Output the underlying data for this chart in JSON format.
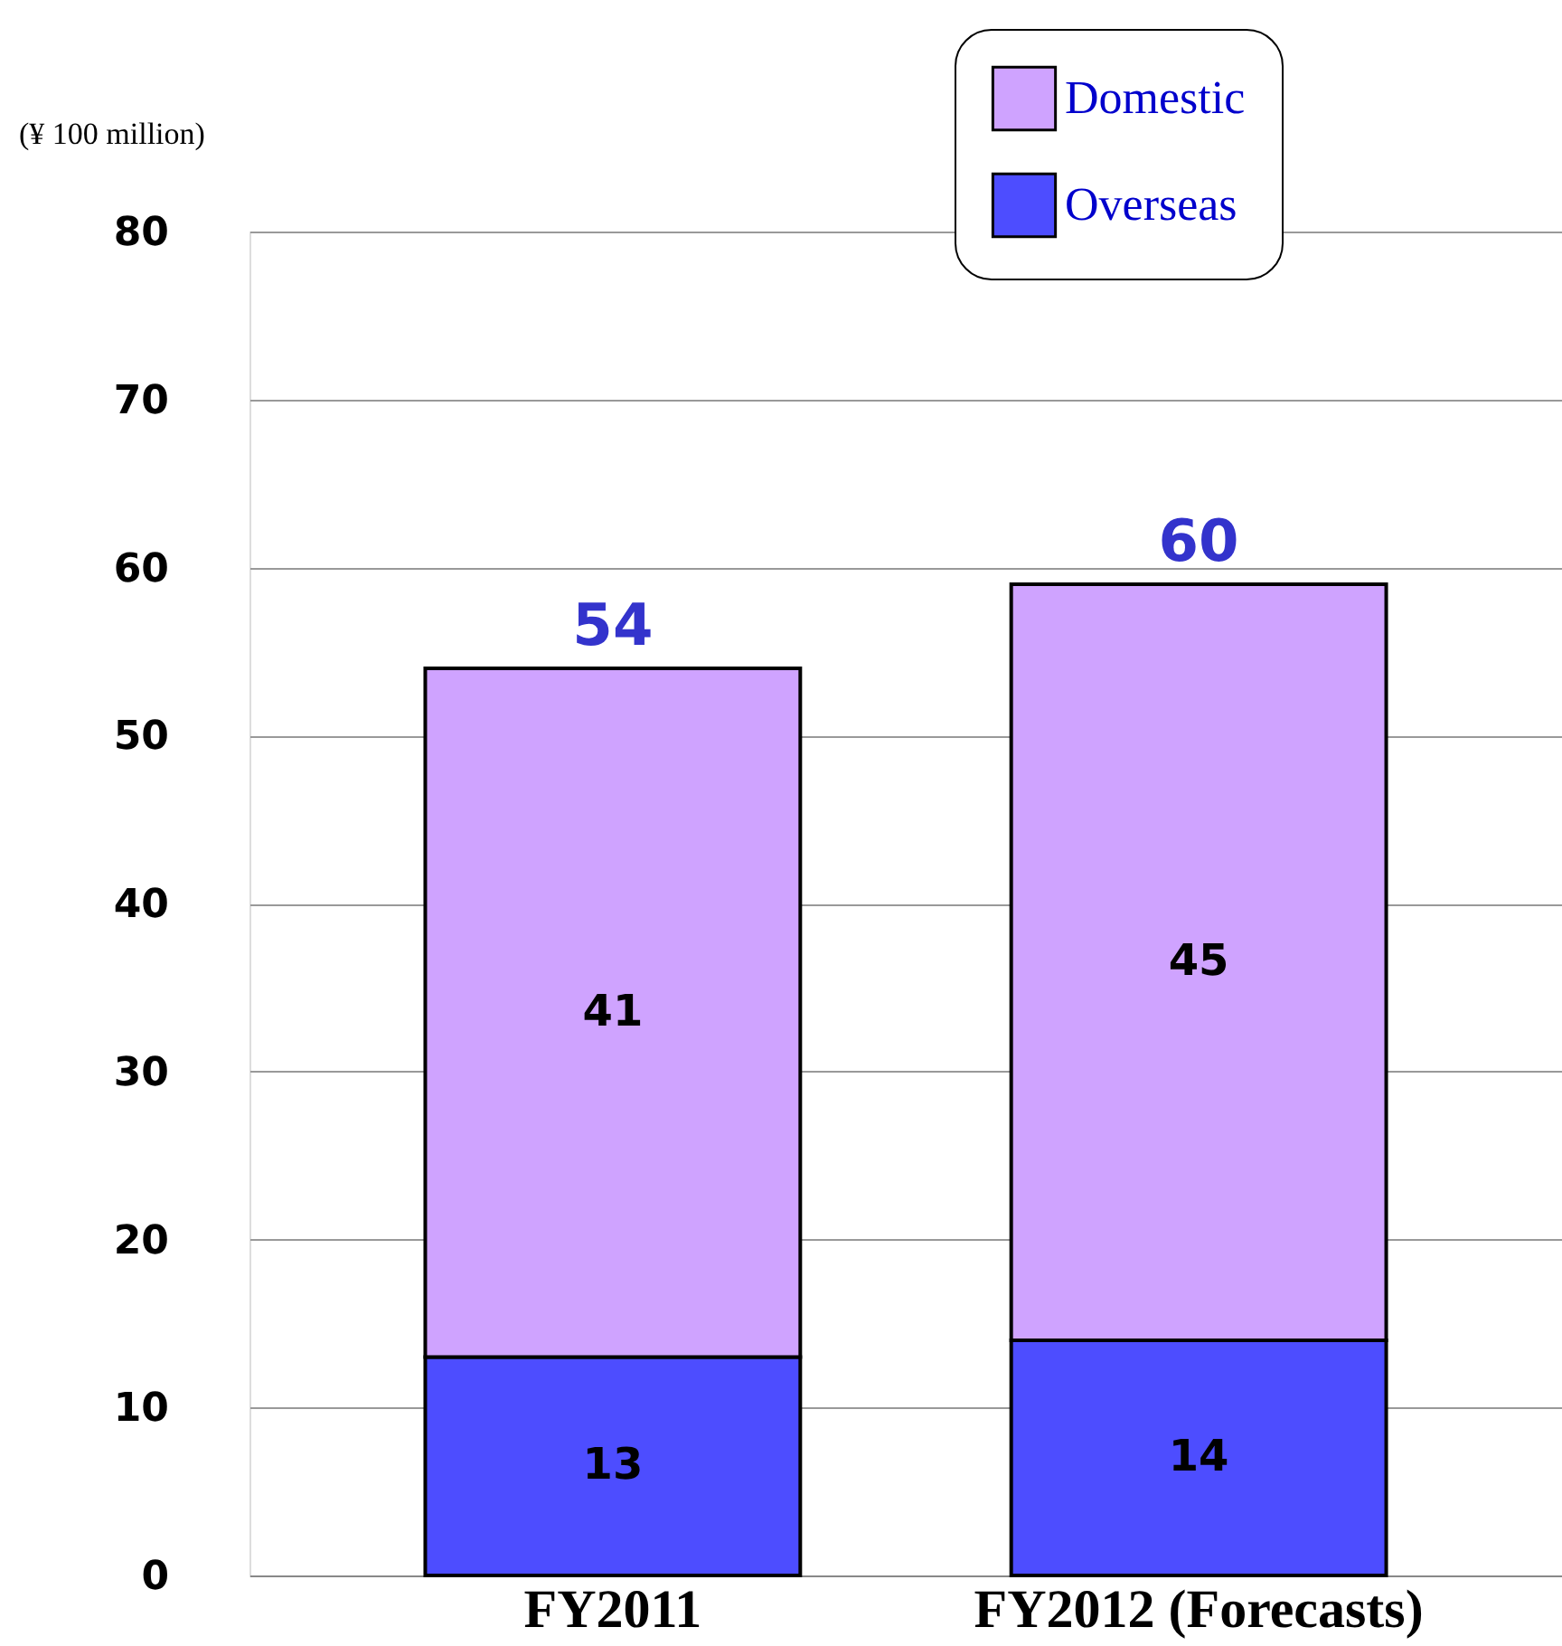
{
  "chart_data": {
    "type": "bar",
    "stacked": true,
    "ylabel": "(¥ 100 million)",
    "categories": [
      "FY2011",
      "FY2012 (Forecasts)"
    ],
    "series": [
      {
        "name": "Overseas",
        "color": "#4d4dff",
        "values": [
          13,
          14
        ]
      },
      {
        "name": "Domestic",
        "color": "#cfa3ff",
        "values": [
          41,
          45
        ]
      }
    ],
    "totals": [
      "54",
      "60"
    ],
    "data_labels": true,
    "ylim": [
      0,
      80
    ],
    "yticks": [
      0,
      10,
      20,
      30,
      40,
      50,
      60,
      70,
      80
    ],
    "grid": "y",
    "legend": "top right"
  }
}
